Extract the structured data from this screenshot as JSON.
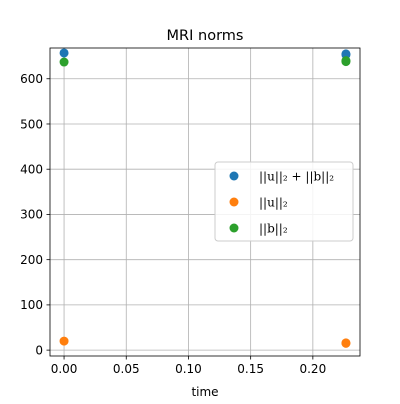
{
  "chart_data": {
    "type": "scatter",
    "title": "MRI norms",
    "xlabel": "time",
    "ylabel": "",
    "xlim": [
      -0.0113,
      0.2379
    ],
    "ylim": [
      -13,
      668
    ],
    "xticks": [
      0.0,
      0.05,
      0.1,
      0.15,
      0.2
    ],
    "xtick_labels": [
      "0.00",
      "0.05",
      "0.10",
      "0.15",
      "0.20"
    ],
    "yticks": [
      0,
      100,
      200,
      300,
      400,
      500,
      600
    ],
    "ytick_labels": [
      "0",
      "100",
      "200",
      "300",
      "400",
      "500",
      "600"
    ],
    "grid": true,
    "legend_position": "center-right",
    "series": [
      {
        "name": "||u||₂ + ||b||₂",
        "color": "#1f77b4",
        "points": [
          {
            "x": 0.0,
            "y": 657
          },
          {
            "x": 0.2266,
            "y": 655
          },
          {
            "x": 0.2266,
            "y": 653
          }
        ]
      },
      {
        "name": "||u||₂",
        "color": "#ff7f0e",
        "points": [
          {
            "x": 0.0,
            "y": 20
          },
          {
            "x": 0.2266,
            "y": 16
          },
          {
            "x": 0.2266,
            "y": 15
          }
        ]
      },
      {
        "name": "||b||₂",
        "color": "#2ca02c",
        "points": [
          {
            "x": 0.0,
            "y": 637
          },
          {
            "x": 0.2266,
            "y": 640
          },
          {
            "x": 0.2266,
            "y": 638
          }
        ]
      }
    ]
  }
}
